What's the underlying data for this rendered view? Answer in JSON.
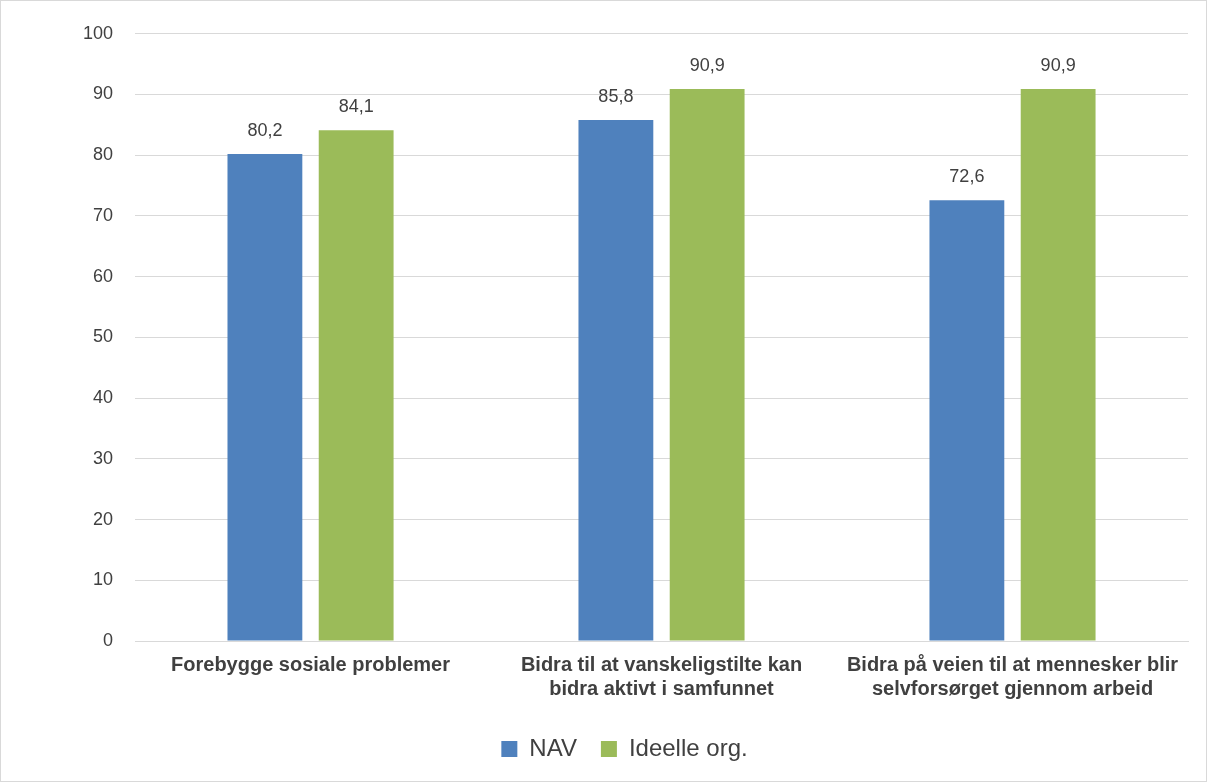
{
  "chart_data": {
    "type": "bar",
    "categories": [
      "Forebygge sosiale problemer",
      "Bidra til at vanskeligstilte kan bidra aktivt i samfunnet",
      "Bidra på veien til at mennesker blir selvforsørget gjennom arbeid"
    ],
    "series": [
      {
        "name": "NAV",
        "color": "#4f81bd",
        "values": [
          80.2,
          85.8,
          72.6
        ],
        "value_labels": [
          "80,2",
          "85,8",
          "72,6"
        ]
      },
      {
        "name": "Ideelle org.",
        "color": "#9bbb59",
        "values": [
          84.1,
          90.9,
          90.9
        ],
        "value_labels": [
          "84,1",
          "90,9",
          "90,9"
        ]
      }
    ],
    "ylim": [
      0,
      100
    ],
    "yticks": [
      0,
      10,
      20,
      30,
      40,
      50,
      60,
      70,
      80,
      90,
      100
    ],
    "grid": "y",
    "legend": "bottom"
  }
}
